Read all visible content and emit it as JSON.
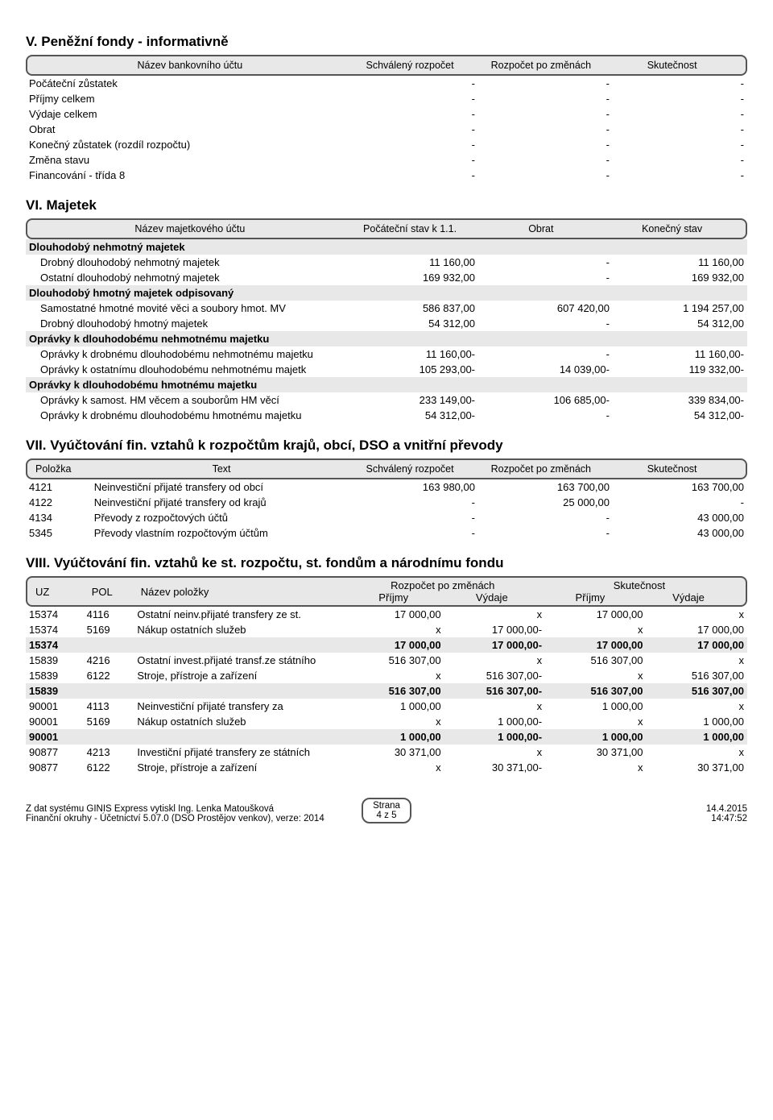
{
  "sectionV": {
    "title": "V. Peněžní fondy - informativně",
    "header": {
      "name": "Název bankovního účtu",
      "c1": "Schválený rozpočet",
      "c2": "Rozpočet po změnách",
      "c3": "Skutečnost"
    },
    "rows": [
      {
        "label": "Počáteční zůstatek",
        "v1": "-",
        "v2": "-",
        "v3": "-"
      },
      {
        "label": "Příjmy celkem",
        "v1": "-",
        "v2": "-",
        "v3": "-"
      },
      {
        "label": "Výdaje celkem",
        "v1": "-",
        "v2": "-",
        "v3": "-"
      },
      {
        "label": "Obrat",
        "v1": "-",
        "v2": "-",
        "v3": "-"
      },
      {
        "label": "Konečný zůstatek (rozdíl rozpočtu)",
        "v1": "-",
        "v2": "-",
        "v3": "-"
      },
      {
        "label": "Změna stavu",
        "v1": "-",
        "v2": "-",
        "v3": "-"
      },
      {
        "label": "Financování - třída 8",
        "v1": "-",
        "v2": "-",
        "v3": "-"
      }
    ]
  },
  "sectionVI": {
    "title": "VI. Majetek",
    "header": {
      "name": "Název majetkového účtu",
      "c1": "Počáteční stav k 1.1.",
      "c2": "Obrat",
      "c3": "Konečný stav"
    },
    "groups": [
      {
        "title": "Dlouhodobý nehmotný majetek",
        "rows": [
          {
            "label": "Drobný dlouhodobý nehmotný majetek",
            "v1": "11 160,00",
            "v2": "-",
            "v3": "11 160,00"
          },
          {
            "label": "Ostatní dlouhodobý nehmotný majetek",
            "v1": "169 932,00",
            "v2": "-",
            "v3": "169 932,00"
          }
        ]
      },
      {
        "title": "Dlouhodobý hmotný majetek odpisovaný",
        "rows": [
          {
            "label": "Samostatné hmotné movité věci a soubory hmot. MV",
            "v1": "586 837,00",
            "v2": "607 420,00",
            "v3": "1 194 257,00"
          },
          {
            "label": "Drobný dlouhodobý hmotný majetek",
            "v1": "54 312,00",
            "v2": "-",
            "v3": "54 312,00"
          }
        ]
      },
      {
        "title": "Oprávky k dlouhodobému nehmotnému majetku",
        "rows": [
          {
            "label": "Oprávky k drobnému dlouhodobému nehmotnému majetku",
            "v1": "11 160,00-",
            "v2": "-",
            "v3": "11 160,00-"
          },
          {
            "label": "Oprávky k ostatnímu dlouhodobému nehmotnému majetk",
            "v1": "105 293,00-",
            "v2": "14 039,00-",
            "v3": "119 332,00-"
          }
        ]
      },
      {
        "title": "Oprávky k dlouhodobému hmotnému majetku",
        "rows": [
          {
            "label": "Oprávky k samost. HM věcem a souborům HM věcí",
            "v1": "233 149,00-",
            "v2": "106 685,00-",
            "v3": "339 834,00-"
          },
          {
            "label": "Oprávky k drobnému dlouhodobému hmotnému majetku",
            "v1": "54 312,00-",
            "v2": "-",
            "v3": "54 312,00-"
          }
        ]
      }
    ]
  },
  "sectionVII": {
    "title": "VII. Vyúčtování fin. vztahů k rozpočtům krajů, obcí, DSO a vnitřní převody",
    "header": {
      "pol": "Položka",
      "text": "Text",
      "c1": "Schválený rozpočet",
      "c2": "Rozpočet po změnách",
      "c3": "Skutečnost"
    },
    "rows": [
      {
        "pol": "4121",
        "text": "Neinvestiční přijaté transfery od obcí",
        "v1": "163 980,00",
        "v2": "163 700,00",
        "v3": "163 700,00"
      },
      {
        "pol": "4122",
        "text": "Neinvestiční přijaté transfery od krajů",
        "v1": "-",
        "v2": "25 000,00",
        "v3": "-"
      },
      {
        "pol": "4134",
        "text": "Převody z rozpočtových účtů",
        "v1": "-",
        "v2": "-",
        "v3": "43 000,00"
      },
      {
        "pol": "5345",
        "text": "Převody vlastním rozpočtovým účtům",
        "v1": "-",
        "v2": "-",
        "v3": "43 000,00"
      }
    ]
  },
  "sectionVIII": {
    "title": "VIII. Vyúčtování fin. vztahů ke st. rozpočtu, st. fondům a národnímu fondu",
    "header": {
      "uz": "UZ",
      "pol": "POL",
      "name": "Název položky",
      "g1": "Rozpočet po změnách",
      "g2": "Skutečnost",
      "in": "Příjmy",
      "out": "Výdaje"
    },
    "blocks": [
      {
        "rows": [
          {
            "uz": "15374",
            "pol": "4116",
            "name": "Ostatní neinv.přijaté transfery ze st.",
            "p1": "17 000,00",
            "v1": "x",
            "p2": "17 000,00",
            "v2": "x"
          },
          {
            "uz": "15374",
            "pol": "5169",
            "name": "Nákup ostatních služeb",
            "p1": "x",
            "v1": "17 000,00-",
            "p2": "x",
            "v2": "17 000,00"
          }
        ],
        "sum": {
          "uz": "15374",
          "p1": "17 000,00",
          "v1": "17 000,00-",
          "p2": "17 000,00",
          "v2": "17 000,00"
        }
      },
      {
        "rows": [
          {
            "uz": "15839",
            "pol": "4216",
            "name": "Ostatní invest.přijaté transf.ze státního",
            "p1": "516 307,00",
            "v1": "x",
            "p2": "516 307,00",
            "v2": "x"
          },
          {
            "uz": "15839",
            "pol": "6122",
            "name": "Stroje, přístroje a zařízení",
            "p1": "x",
            "v1": "516 307,00-",
            "p2": "x",
            "v2": "516 307,00"
          }
        ],
        "sum": {
          "uz": "15839",
          "p1": "516 307,00",
          "v1": "516 307,00-",
          "p2": "516 307,00",
          "v2": "516 307,00"
        }
      },
      {
        "rows": [
          {
            "uz": "90001",
            "pol": "4113",
            "name": "Neinvestiční přijaté transfery za",
            "p1": "1 000,00",
            "v1": "x",
            "p2": "1 000,00",
            "v2": "x"
          },
          {
            "uz": "90001",
            "pol": "5169",
            "name": "Nákup ostatních služeb",
            "p1": "x",
            "v1": "1 000,00-",
            "p2": "x",
            "v2": "1 000,00"
          }
        ],
        "sum": {
          "uz": "90001",
          "p1": "1 000,00",
          "v1": "1 000,00-",
          "p2": "1 000,00",
          "v2": "1 000,00"
        }
      },
      {
        "rows": [
          {
            "uz": "90877",
            "pol": "4213",
            "name": "Investiční přijaté transfery ze státních",
            "p1": "30 371,00",
            "v1": "x",
            "p2": "30 371,00",
            "v2": "x"
          },
          {
            "uz": "90877",
            "pol": "6122",
            "name": "Stroje, přístroje a zařízení",
            "p1": "x",
            "v1": "30 371,00-",
            "p2": "x",
            "v2": "30 371,00"
          }
        ]
      }
    ]
  },
  "footer": {
    "left1": "Z dat systému GINIS Express vytiskl Ing. Lenka Matoušková",
    "left2": "Finanční okruhy - Účetnictví 5.07.0 (DSO Prostějov venkov), verze: 2014",
    "midLabel": "Strana",
    "midPage": "4 z 5",
    "right1": "14.4.2015",
    "right2": "14:47:52"
  }
}
